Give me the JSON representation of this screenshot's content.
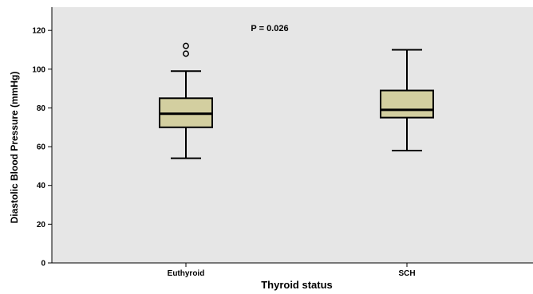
{
  "chart_data": {
    "type": "boxplot",
    "xlabel": "Thyroid status",
    "ylabel": "Diastolic Blood Pressure (mmHg)",
    "ylim": [
      0,
      132
    ],
    "yticks": [
      0,
      20,
      40,
      60,
      80,
      100,
      120
    ],
    "annotation": "P = 0.026",
    "grid": false,
    "colors": {
      "plot_background": "#e6e6e6",
      "box_fill": "#d3cfa0",
      "line": "#000000"
    },
    "categories": [
      "Euthyroid",
      "SCH"
    ],
    "boxes": [
      {
        "category": "Euthyroid",
        "whisker_low": 54,
        "q1": 70,
        "median": 77,
        "q3": 85,
        "whisker_high": 99,
        "outliers": [
          108,
          112
        ]
      },
      {
        "category": "SCH",
        "whisker_low": 58,
        "q1": 75,
        "median": 79,
        "q3": 89,
        "whisker_high": 110,
        "outliers": []
      }
    ]
  }
}
